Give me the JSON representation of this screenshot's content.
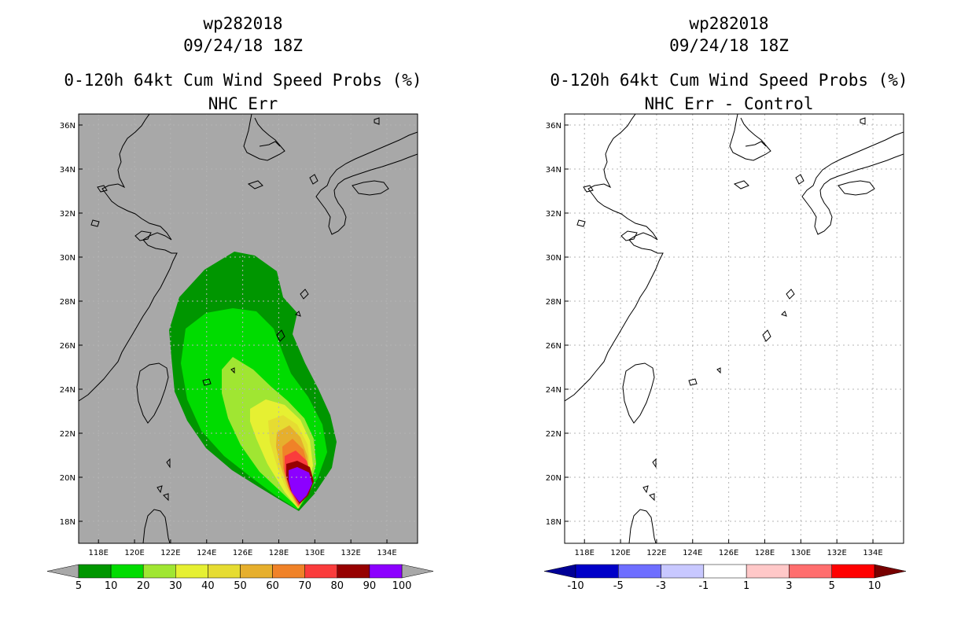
{
  "left": {
    "title_id": "wp282018",
    "title_date": "09/24/18 18Z",
    "title_main": "0-120h 64kt Cum Wind Speed Probs (%)",
    "title_sub": "NHC Err",
    "colors": {
      "background": "#a8a8a8"
    },
    "colorbar": {
      "colors": [
        "#009600",
        "#00dc00",
        "#a0e632",
        "#e6f032",
        "#e6dc32",
        "#e6af2d",
        "#f08228",
        "#fa3c3c",
        "#960000",
        "#8c00ff"
      ],
      "labels": [
        "5",
        "10",
        "20",
        "30",
        "40",
        "50",
        "60",
        "70",
        "80",
        "90",
        "100"
      ],
      "under_color": "#a8a8a8",
      "over_color": "#a8a8a8"
    },
    "contour_levels": [
      5,
      10,
      20,
      30,
      40,
      50,
      60,
      70,
      80,
      90
    ]
  },
  "right": {
    "title_id": "wp282018",
    "title_date": "09/24/18 18Z",
    "title_main": "0-120h 64kt Cum Wind Speed Probs (%)",
    "title_sub": "NHC Err - Control",
    "colors": {
      "background": "#ffffff"
    },
    "colorbar": {
      "colors": [
        "#0000c8",
        "#6e6eff",
        "#c8c8ff",
        "#ffffff",
        "#ffc8c8",
        "#ff6e6e",
        "#ff0000"
      ],
      "labels": [
        "-10",
        "-5",
        "-3",
        "-1",
        "1",
        "3",
        "5",
        "10"
      ],
      "under_color": "#000096",
      "over_color": "#780000"
    }
  },
  "axes": {
    "lon_ticks": [
      "118E",
      "120E",
      "122E",
      "124E",
      "126E",
      "128E",
      "130E",
      "132E",
      "134E"
    ],
    "lat_ticks": [
      "36N",
      "34N",
      "32N",
      "30N",
      "28N",
      "26N",
      "24N",
      "22N",
      "20N",
      "18N"
    ],
    "lon_values": [
      118,
      120,
      122,
      124,
      126,
      128,
      130,
      132,
      134
    ],
    "lat_values": [
      36,
      34,
      32,
      30,
      28,
      26,
      24,
      22,
      20,
      18
    ],
    "lon_range": [
      116.9,
      135.7
    ],
    "lat_range": [
      17,
      36.5
    ]
  }
}
